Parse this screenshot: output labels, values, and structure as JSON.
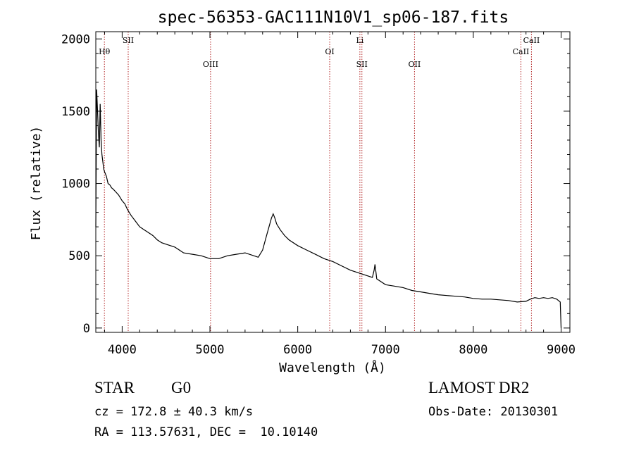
{
  "chart_data": {
    "type": "line",
    "title": "spec-56353-GAC111N10V1_sp06-187.fits",
    "xlabel": "Wavelength (Å)",
    "ylabel": "Flux (relative)",
    "xlim": [
      3700,
      9100
    ],
    "ylim": [
      -30,
      2050
    ],
    "xticks": [
      4000,
      5000,
      6000,
      7000,
      8000,
      9000
    ],
    "yticks": [
      0,
      500,
      1000,
      1500,
      2000
    ],
    "grid": false,
    "line_color": "#000000",
    "marker_color": "#b22222",
    "series": [
      {
        "x": [
          3700,
          3710,
          3720,
          3730,
          3740,
          3750,
          3760,
          3770,
          3780,
          3790,
          3800,
          3820,
          3840,
          3860,
          3880,
          3900,
          3930,
          3960,
          4000,
          4030,
          4060,
          4080,
          4100,
          4150,
          4200,
          4250,
          4300,
          4350,
          4400,
          4450,
          4500,
          4600,
          4700,
          4800,
          4900,
          5000,
          5100,
          5200,
          5300,
          5400,
          5500,
          5550,
          5600,
          5650,
          5700,
          5720,
          5740,
          5760,
          5800,
          5850,
          5900,
          6000,
          6100,
          6200,
          6300,
          6400,
          6500,
          6600,
          6700,
          6800,
          6850,
          6870,
          6880,
          6890,
          6900,
          7000,
          7100,
          7200,
          7300,
          7400,
          7500,
          7600,
          7700,
          7800,
          7900,
          8000,
          8100,
          8200,
          8300,
          8400,
          8500,
          8600,
          8650,
          8700,
          8750,
          8800,
          8850,
          8900,
          8950,
          8990,
          9000
        ],
        "y": [
          700,
          1650,
          1500,
          1350,
          1250,
          1550,
          1300,
          1200,
          1150,
          1100,
          1080,
          1050,
          1000,
          990,
          970,
          960,
          940,
          920,
          880,
          860,
          820,
          800,
          780,
          740,
          700,
          680,
          660,
          640,
          610,
          590,
          580,
          560,
          520,
          510,
          500,
          480,
          480,
          500,
          510,
          520,
          500,
          490,
          540,
          650,
          760,
          790,
          760,
          720,
          680,
          640,
          610,
          570,
          540,
          510,
          480,
          460,
          430,
          400,
          380,
          360,
          350,
          400,
          440,
          390,
          340,
          300,
          290,
          280,
          260,
          250,
          240,
          230,
          225,
          220,
          215,
          205,
          200,
          200,
          195,
          190,
          180,
          185,
          200,
          210,
          205,
          210,
          205,
          210,
          200,
          180,
          0
        ]
      }
    ],
    "lines": [
      {
        "label": "Hθ",
        "x": 3798,
        "row": 1
      },
      {
        "label": "SII",
        "x": 4069,
        "row": 0
      },
      {
        "label": "OIII",
        "x": 5007,
        "row": 2
      },
      {
        "label": "OI",
        "x": 6364,
        "row": 1
      },
      {
        "label": "Li",
        "x": 6708,
        "row": 0
      },
      {
        "label": "SII",
        "x": 6731,
        "row": 2
      },
      {
        "label": "OII",
        "x": 7330,
        "row": 2
      },
      {
        "label": "CaII",
        "x": 8542,
        "row": 1
      },
      {
        "label": "CaII",
        "x": 8662,
        "row": 0
      }
    ]
  },
  "info": {
    "object_class": "STAR",
    "subclass": "G0",
    "survey": "LAMOST DR2",
    "cz": "cz = 172.8 ± 40.3 km/s",
    "obs_date": "Obs-Date: 20130301",
    "radec": "RA = 113.57631, DEC =  10.10140"
  }
}
